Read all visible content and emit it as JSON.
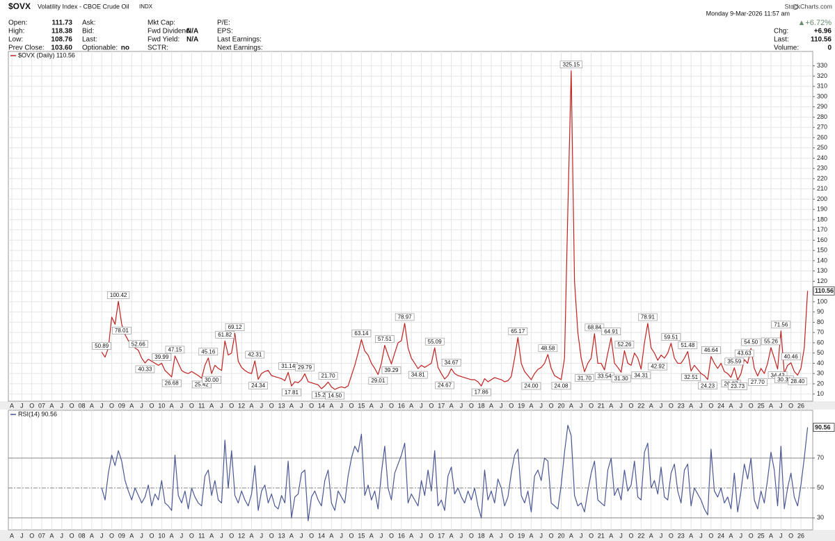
{
  "header": {
    "symbol": "$OVX",
    "name": "Volatility Index - CBOE Crude Oil",
    "exchange": "INDX",
    "timestamp": "Monday  9-Mar-2026  11:57 am",
    "source": "StockCharts.com",
    "change_pct": "▲+6.72%",
    "columns": [
      [
        {
          "label": "Open:",
          "value": "111.73"
        },
        {
          "label": "High:",
          "value": "118.38"
        },
        {
          "label": "Low:",
          "value": "108.76"
        },
        {
          "label": "Prev Close:",
          "value": "103.60"
        }
      ],
      [
        {
          "label": "Ask:"
        },
        {
          "label": "Bid:"
        },
        {
          "label": "Last:"
        },
        {
          "label": "Optionable:",
          "value": "no"
        }
      ],
      [
        {
          "label": "Mkt Cap:"
        },
        {
          "label": "Fwd Dividend:",
          "value": "N/A"
        },
        {
          "label": "Fwd Yield:",
          "value": "N/A"
        },
        {
          "label": "SCTR:"
        }
      ],
      [
        {
          "label": "P/E:"
        },
        {
          "label": "EPS:"
        },
        {
          "label": "Last Earnings:"
        },
        {
          "label": "Next Earnings:"
        }
      ]
    ],
    "summary": [
      {
        "label": "Chg:",
        "value": "+6.96"
      },
      {
        "label": "Last:",
        "value": "110.56"
      },
      {
        "label": "Volume:",
        "value": "0"
      }
    ]
  },
  "chart_data": [
    {
      "type": "line",
      "title": "$OVX (Daily) 110.56",
      "grid": true,
      "categories": [
        "A",
        null,
        null,
        "J",
        null,
        null,
        "O",
        null,
        null,
        "07",
        null,
        null,
        "A",
        null,
        null,
        "J",
        null,
        null,
        "O",
        null,
        null,
        "08",
        null,
        null,
        "A",
        null,
        null,
        "J",
        null,
        null,
        "O",
        null,
        null,
        "09",
        null,
        null,
        "A",
        null,
        null,
        "J",
        null,
        null,
        "O",
        null,
        null,
        "10",
        null,
        null,
        "A",
        null,
        null,
        "J",
        null,
        null,
        "O",
        null,
        null,
        "11",
        null,
        null,
        "A",
        null,
        null,
        "J",
        null,
        null,
        "O",
        null,
        null,
        "12",
        null,
        null,
        "A",
        null,
        null,
        "J",
        null,
        null,
        "O",
        null,
        null,
        "13",
        null,
        null,
        "A",
        null,
        null,
        "J",
        null,
        null,
        "O",
        null,
        null,
        "14",
        null,
        null,
        "A",
        null,
        null,
        "J",
        null,
        null,
        "O",
        null,
        null,
        "15",
        null,
        null,
        "A",
        null,
        null,
        "J",
        null,
        null,
        "O",
        null,
        null,
        "16",
        null,
        null,
        "A",
        null,
        null,
        "J",
        null,
        null,
        "O",
        null,
        null,
        "17",
        null,
        null,
        "A",
        null,
        null,
        "J",
        null,
        null,
        "O",
        null,
        null,
        "18",
        null,
        null,
        "A",
        null,
        null,
        "J",
        null,
        null,
        "O",
        null,
        null,
        "19",
        null,
        null,
        "A",
        null,
        null,
        "J",
        null,
        null,
        "O",
        null,
        null,
        "20",
        null,
        null,
        "A",
        null,
        null,
        "J",
        null,
        null,
        "O",
        null,
        null,
        "21",
        null,
        null,
        "A",
        null,
        null,
        "J",
        null,
        null,
        "O",
        null,
        null,
        "22",
        null,
        null,
        "A",
        null,
        null,
        "J",
        null,
        null,
        "O",
        null,
        null,
        "23",
        null,
        null,
        "A",
        null,
        null,
        "J",
        null,
        null,
        "O",
        null,
        null,
        "24",
        null,
        null,
        "A",
        null,
        null,
        "J",
        null,
        null,
        "O",
        null,
        null,
        "25",
        null,
        null,
        "A",
        null,
        null,
        "J",
        null,
        null,
        "O",
        null,
        null,
        "26",
        null,
        null
      ],
      "ylim": [
        3,
        344
      ],
      "yticks": [
        10,
        20,
        30,
        40,
        50,
        60,
        70,
        80,
        90,
        100,
        110,
        120,
        130,
        140,
        150,
        160,
        170,
        180,
        190,
        200,
        210,
        220,
        230,
        240,
        250,
        260,
        270,
        280,
        290,
        300,
        310,
        320,
        330
      ],
      "series": [
        {
          "name": "$OVX",
          "color": "#c0201e",
          "values": [
            null,
            null,
            null,
            null,
            null,
            null,
            null,
            null,
            null,
            null,
            null,
            null,
            null,
            null,
            null,
            null,
            null,
            null,
            null,
            null,
            null,
            null,
            null,
            null,
            null,
            null,
            null,
            50.89,
            46,
            55,
            85,
            78,
            100.42,
            78.01,
            68,
            62,
            58,
            55,
            52.66,
            45,
            40.33,
            44,
            42,
            40,
            38,
            39.99,
            33,
            30,
            26.68,
            47.15,
            40,
            33,
            31,
            30,
            32,
            30,
            28,
            25.42,
            38,
            45.16,
            30.0,
            38,
            35,
            33,
            61.82,
            48,
            50,
            69.12,
            42,
            36,
            33,
            31,
            30,
            42.31,
            24.34,
            30,
            32,
            33,
            28,
            27,
            26,
            25,
            23,
            31.14,
            17.81,
            22,
            21,
            24,
            29.79,
            22,
            21,
            20,
            19,
            15.2,
            18,
            21.7,
            17,
            14.5,
            16,
            17,
            16,
            18,
            28,
            38,
            50,
            63.14,
            52,
            48,
            40,
            35,
            29.01,
            40,
            57.51,
            48,
            39.29,
            50,
            60,
            62,
            78.97,
            55,
            45,
            40,
            34.81,
            38,
            36,
            38,
            40,
            55.09,
            36,
            30,
            24.67,
            28,
            34.67,
            30,
            28,
            27,
            26,
            25,
            24,
            24,
            22,
            17.86,
            25,
            22,
            24,
            26,
            25,
            24,
            22,
            23,
            27,
            45,
            65.17,
            40,
            32,
            28,
            24.0,
            30,
            34,
            36,
            40,
            48.58,
            35,
            28,
            26,
            24.08,
            45,
            190,
            325.15,
            120,
            70,
            45,
            31.7,
            40,
            45,
            68.84,
            40,
            40,
            33.54,
            50,
            64.91,
            40,
            36,
            31.3,
            52.26,
            40,
            38,
            50,
            45,
            34.31,
            60,
            78.91,
            55,
            50,
            42.92,
            48,
            45,
            50,
            59.51,
            45,
            40,
            40,
            45,
            51.48,
            32.51,
            38,
            34,
            30,
            28,
            24.23,
            46.64,
            40,
            35,
            40,
            32,
            30,
            26.27,
            35.59,
            23.73,
            30,
            43.63,
            40,
            54.5,
            35,
            27.7,
            35,
            30,
            40,
            55.26,
            45,
            34.42,
            71.56,
            30.31,
            38,
            40.46,
            32,
            28.4,
            35,
            55,
            110.56
          ],
          "value_labels": [
            null,
            null,
            null,
            null,
            null,
            null,
            null,
            null,
            null,
            null,
            null,
            null,
            null,
            null,
            null,
            null,
            null,
            null,
            null,
            null,
            null,
            null,
            null,
            null,
            null,
            null,
            null,
            "50.89",
            null,
            null,
            null,
            null,
            "100.42",
            "78.01",
            null,
            null,
            null,
            null,
            "52.66",
            null,
            "40.33",
            null,
            null,
            null,
            null,
            "39.99",
            null,
            null,
            "26.68",
            "47.15",
            null,
            null,
            null,
            null,
            null,
            null,
            null,
            "25.42",
            null,
            "45.16",
            "30.00",
            null,
            null,
            null,
            "61.82",
            null,
            null,
            "69.12",
            null,
            null,
            null,
            null,
            null,
            "42.31",
            "24.34",
            null,
            null,
            null,
            null,
            null,
            null,
            null,
            null,
            "31.14",
            "17.81",
            null,
            null,
            null,
            "29.79",
            null,
            null,
            null,
            null,
            "15.20",
            null,
            "21.70",
            null,
            "14.50",
            null,
            null,
            null,
            null,
            null,
            null,
            null,
            "63.14",
            null,
            null,
            null,
            null,
            "29.01",
            null,
            "57.51",
            null,
            "39.29",
            null,
            null,
            null,
            "78.97",
            null,
            null,
            null,
            "34.81",
            null,
            null,
            null,
            null,
            "55.09",
            null,
            null,
            "24.67",
            null,
            "34.67",
            null,
            null,
            null,
            null,
            null,
            null,
            null,
            null,
            "17.86",
            null,
            null,
            null,
            null,
            null,
            null,
            null,
            null,
            null,
            null,
            "65.17",
            null,
            null,
            null,
            "24.00",
            null,
            null,
            null,
            null,
            "48.58",
            null,
            null,
            null,
            "24.08",
            null,
            null,
            "325.15",
            null,
            null,
            null,
            "31.70",
            null,
            null,
            "68.84",
            null,
            null,
            "33.54",
            null,
            "64.91",
            null,
            null,
            "31.30",
            "52.26",
            null,
            null,
            null,
            null,
            "34.31",
            null,
            "78.91",
            null,
            null,
            "42.92",
            null,
            null,
            null,
            "59.51",
            null,
            null,
            null,
            null,
            "51.48",
            "32.51",
            null,
            null,
            null,
            null,
            "24.23",
            "46.64",
            null,
            null,
            null,
            null,
            null,
            "26.27",
            "35.59",
            "23.73",
            null,
            "43.63",
            null,
            "54.50",
            null,
            "27.70",
            null,
            null,
            null,
            "55.26",
            null,
            "34.42",
            "71.56",
            "30.31",
            null,
            "40.46",
            null,
            "28.40",
            null,
            null,
            null
          ]
        }
      ]
    },
    {
      "type": "line",
      "title": "RSI(14) 90.56",
      "grid": true,
      "ylim": [
        22,
        102
      ],
      "yticks": [
        30,
        50,
        70
      ],
      "series": [
        {
          "name": "RSI(14)",
          "color": "#4a5694",
          "values": [
            null,
            null,
            null,
            null,
            null,
            null,
            null,
            null,
            null,
            null,
            null,
            null,
            null,
            null,
            null,
            null,
            null,
            null,
            null,
            null,
            null,
            null,
            null,
            null,
            null,
            null,
            null,
            50,
            42,
            60,
            72,
            65,
            75,
            68,
            55,
            48,
            42,
            50,
            45,
            40,
            44,
            52,
            38,
            46,
            42,
            55,
            40,
            38,
            35,
            72,
            45,
            40,
            48,
            36,
            50,
            44,
            40,
            38,
            58,
            62,
            45,
            55,
            42,
            40,
            82,
            50,
            75,
            45,
            40,
            48,
            42,
            38,
            46,
            65,
            35,
            48,
            52,
            40,
            46,
            38,
            36,
            45,
            40,
            68,
            30,
            44,
            46,
            60,
            62,
            28,
            44,
            48,
            42,
            38,
            55,
            62,
            40,
            35,
            48,
            44,
            40,
            58,
            70,
            78,
            74,
            86,
            45,
            52,
            42,
            48,
            36,
            60,
            78,
            50,
            42,
            60,
            66,
            72,
            80,
            40,
            46,
            42,
            38,
            55,
            45,
            62,
            48,
            75,
            38,
            42,
            35,
            58,
            64,
            46,
            50,
            44,
            40,
            48,
            42,
            50,
            38,
            30,
            62,
            42,
            48,
            40,
            56,
            50,
            38,
            44,
            60,
            72,
            76,
            45,
            40,
            48,
            34,
            58,
            62,
            55,
            70,
            68,
            40,
            38,
            36,
            52,
            74,
            92,
            85,
            45,
            38,
            40,
            34,
            48,
            60,
            68,
            42,
            40,
            38,
            62,
            70,
            45,
            50,
            42,
            62,
            48,
            52,
            68,
            44,
            42,
            74,
            80,
            50,
            55,
            46,
            64,
            44,
            42,
            60,
            66,
            48,
            40,
            62,
            66,
            38,
            50,
            46,
            42,
            36,
            32,
            76,
            48,
            44,
            50,
            40,
            44,
            36,
            60,
            34,
            48,
            66,
            56,
            70,
            42,
            36,
            48,
            40,
            56,
            74,
            62,
            38,
            78,
            36,
            50,
            60,
            44,
            38,
            52,
            70,
            90.56
          ]
        }
      ]
    }
  ]
}
